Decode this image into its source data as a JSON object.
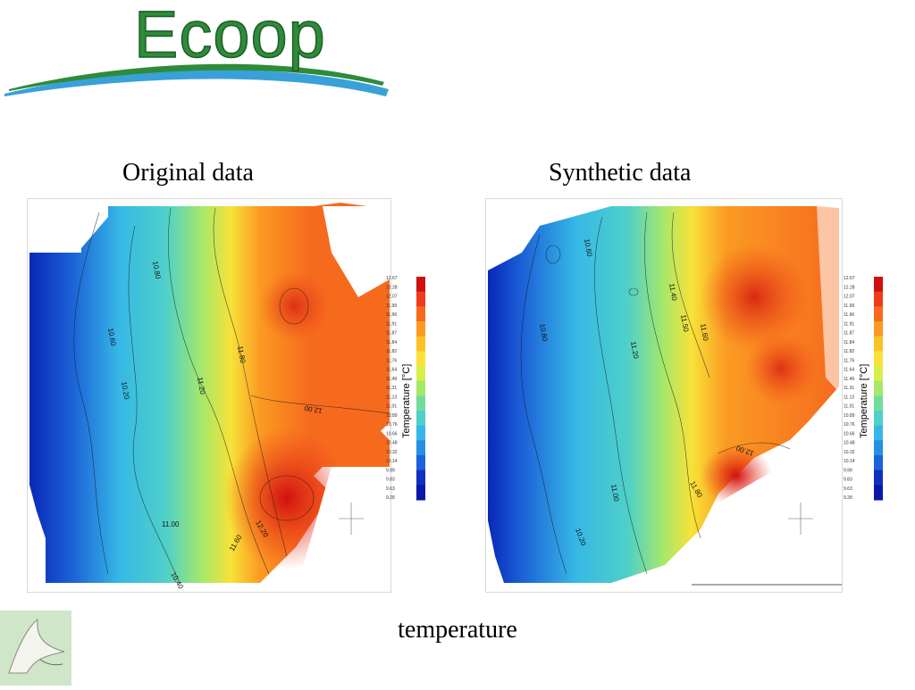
{
  "logo": {
    "text": "Ecoop"
  },
  "panels": [
    {
      "title": "Original data",
      "colorbar_title": "Temperature [°C]",
      "contour_labels": [
        "10.80",
        "10.60",
        "10.20",
        "11.00",
        "11.20",
        "11.80",
        "12.00",
        "12.20",
        "11.60",
        "10.40"
      ]
    },
    {
      "title": "Synthetic data",
      "colorbar_title": "Temperature [°C]",
      "contour_labels": [
        "10.60",
        "11.40",
        "11.50",
        "11.20",
        "11.60",
        "10.80",
        "11.00",
        "11.80",
        "12.00",
        "10.20"
      ]
    }
  ],
  "colorbar": {
    "ticks": [
      "12.67",
      "12.28",
      "12.07",
      "11.99",
      "11.96",
      "11.91",
      "11.87",
      "11.84",
      "11.82",
      "11.76",
      "11.64",
      "11.49",
      "11.31",
      "11.13",
      "11.01",
      "10.89",
      "10.76",
      "10.66",
      "10.48",
      "10.32",
      "10.14",
      "9.99",
      "9.83",
      "9.63",
      "9.28"
    ],
    "colors": [
      "#d01010",
      "#f03b1a",
      "#f66a1e",
      "#fb9a22",
      "#fdc128",
      "#f8e238",
      "#d8ef4a",
      "#a6e86a",
      "#73dc9a",
      "#4fd0c8",
      "#36b8e6",
      "#2690e2",
      "#1c62d8",
      "#1030c0",
      "#0a18a8"
    ]
  },
  "caption": "temperature"
}
